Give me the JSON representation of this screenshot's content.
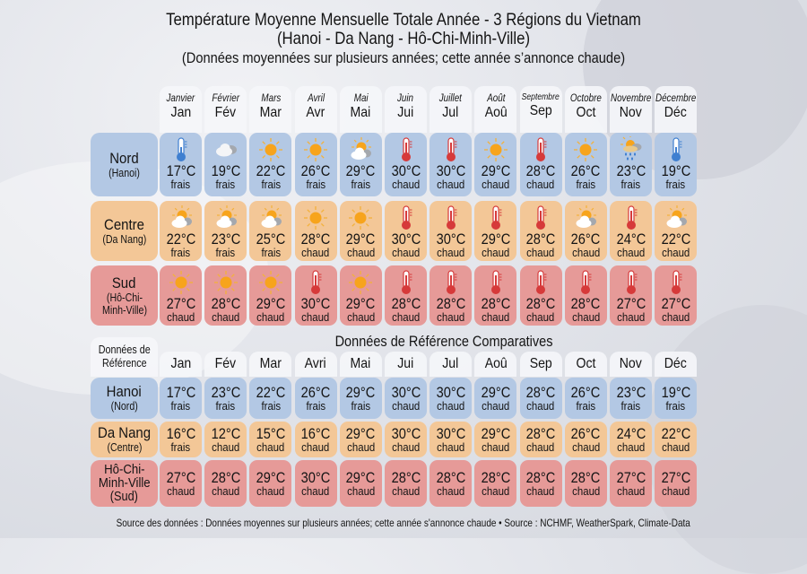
{
  "title": {
    "line1": "Température Moyenne Mensuelle Totale Année - 3 Régions du Vietnam",
    "line2": "(Hanoi - Da Nang - Hô-Chi-Minh-Ville)",
    "line3": "(Données moyennées sur plusieurs années; cette année s’annonce chaude)"
  },
  "months": [
    {
      "full": "Janvier",
      "abbr": "Jan",
      "ref_abbr": "Jan"
    },
    {
      "full": "Février",
      "abbr": "Fév",
      "ref_abbr": "Fév"
    },
    {
      "full": "Mars",
      "abbr": "Mar",
      "ref_abbr": "Mar"
    },
    {
      "full": "Avril",
      "abbr": "Avr",
      "ref_abbr": "Avri"
    },
    {
      "full": "Mai",
      "abbr": "Mai",
      "ref_abbr": "Mai"
    },
    {
      "full": "Juin",
      "abbr": "Jui",
      "ref_abbr": "Jui"
    },
    {
      "full": "Juillet",
      "abbr": "Jul",
      "ref_abbr": "Jul"
    },
    {
      "full": "Août",
      "abbr": "Aoû",
      "ref_abbr": "Aoû"
    },
    {
      "full": "Septembre",
      "abbr": "Sep",
      "ref_abbr": "Sep"
    },
    {
      "full": "Octobre",
      "abbr": "Oct",
      "ref_abbr": "Oct"
    },
    {
      "full": "Novembre",
      "abbr": "Nov",
      "ref_abbr": "Nov"
    },
    {
      "full": "Décembre",
      "abbr": "Déc",
      "ref_abbr": "Déc"
    }
  ],
  "colors": {
    "nord": "#b3c8e4",
    "centre": "#f3c797",
    "sud": "#e69a98"
  },
  "main_table": {
    "rows": [
      {
        "region": "Nord",
        "city": "(Hanoi)",
        "cls": "nord",
        "cells": [
          {
            "temp": "17°C",
            "desc": "frais",
            "icon": "thermometer-cold"
          },
          {
            "temp": "19°C",
            "desc": "frais",
            "icon": "cloud"
          },
          {
            "temp": "22°C",
            "desc": "frais",
            "icon": "sun"
          },
          {
            "temp": "26°C",
            "desc": "frais",
            "icon": "sun"
          },
          {
            "temp": "29°C",
            "desc": "frais",
            "icon": "partly-cloudy"
          },
          {
            "temp": "30°C",
            "desc": "chaud",
            "icon": "thermometer-hot"
          },
          {
            "temp": "30°C",
            "desc": "chaud",
            "icon": "thermometer-hot"
          },
          {
            "temp": "29°C",
            "desc": "chaud",
            "icon": "sun"
          },
          {
            "temp": "28°C",
            "desc": "chaud",
            "icon": "thermometer-hot"
          },
          {
            "temp": "26°C",
            "desc": "frais",
            "icon": "sun"
          },
          {
            "temp": "23°C",
            "desc": "frais",
            "icon": "sun-rain"
          },
          {
            "temp": "19°C",
            "desc": "frais",
            "icon": "thermometer-cold"
          }
        ]
      },
      {
        "region": "Centre",
        "city": "(Da Nang)",
        "cls": "centre",
        "cells": [
          {
            "temp": "22°C",
            "desc": "frais",
            "icon": "partly-cloudy"
          },
          {
            "temp": "23°C",
            "desc": "frais",
            "icon": "partly-cloudy"
          },
          {
            "temp": "25°C",
            "desc": "frais",
            "icon": "partly-cloudy"
          },
          {
            "temp": "28°C",
            "desc": "chaud",
            "icon": "sun"
          },
          {
            "temp": "29°C",
            "desc": "chaud",
            "icon": "sun"
          },
          {
            "temp": "30°C",
            "desc": "chaud",
            "icon": "thermometer-hot"
          },
          {
            "temp": "30°C",
            "desc": "chaud",
            "icon": "thermometer-hot"
          },
          {
            "temp": "29°C",
            "desc": "chaud",
            "icon": "thermometer-hot"
          },
          {
            "temp": "28°C",
            "desc": "chaud",
            "icon": "thermometer-hot"
          },
          {
            "temp": "26°C",
            "desc": "chaud",
            "icon": "partly-cloudy"
          },
          {
            "temp": "24°C",
            "desc": "chaud",
            "icon": "thermometer-hot"
          },
          {
            "temp": "22°C",
            "desc": "chaud",
            "icon": "partly-cloudy"
          }
        ]
      },
      {
        "region": "Sud",
        "city": "(Hô-Chi-Minh-Ville)",
        "cls": "sud",
        "cells": [
          {
            "temp": "27°C",
            "desc": "chaud",
            "icon": "sun"
          },
          {
            "temp": "28°C",
            "desc": "chaud",
            "icon": "sun"
          },
          {
            "temp": "29°C",
            "desc": "chaud",
            "icon": "sun"
          },
          {
            "temp": "30°C",
            "desc": "chaud",
            "icon": "thermometer-hot"
          },
          {
            "temp": "29°C",
            "desc": "chaud",
            "icon": "sun"
          },
          {
            "temp": "28°C",
            "desc": "chaud",
            "icon": "thermometer-hot"
          },
          {
            "temp": "28°C",
            "desc": "chaud",
            "icon": "thermometer-hot"
          },
          {
            "temp": "28°C",
            "desc": "chaud",
            "icon": "thermometer-hot"
          },
          {
            "temp": "28°C",
            "desc": "chaud",
            "icon": "thermometer-hot"
          },
          {
            "temp": "28°C",
            "desc": "chaud",
            "icon": "thermometer-hot"
          },
          {
            "temp": "27°C",
            "desc": "chaud",
            "icon": "thermometer-hot"
          },
          {
            "temp": "27°C",
            "desc": "chaud",
            "icon": "thermometer-hot"
          }
        ]
      }
    ]
  },
  "reference": {
    "title": "Données de Référence Comparatives",
    "corner_label_1": "Données de",
    "corner_label_2": "Référence",
    "rows": [
      {
        "city": "Hanoi",
        "region": "(Nord)",
        "cls": "nord",
        "cells": [
          {
            "temp": "17°C",
            "desc": "frais"
          },
          {
            "temp": "23°C",
            "desc": "frais"
          },
          {
            "temp": "22°C",
            "desc": "frais"
          },
          {
            "temp": "26°C",
            "desc": "frais"
          },
          {
            "temp": "29°C",
            "desc": "frais"
          },
          {
            "temp": "30°C",
            "desc": "chaud"
          },
          {
            "temp": "30°C",
            "desc": "chaud"
          },
          {
            "temp": "29°C",
            "desc": "chaud"
          },
          {
            "temp": "28°C",
            "desc": "chaud"
          },
          {
            "temp": "26°C",
            "desc": "frais"
          },
          {
            "temp": "23°C",
            "desc": "frais"
          },
          {
            "temp": "19°C",
            "desc": "frais"
          }
        ]
      },
      {
        "city": "Da Nang",
        "region": "(Centre)",
        "cls": "centre",
        "cells": [
          {
            "temp": "16°C",
            "desc": "frais"
          },
          {
            "temp": "12°C",
            "desc": "chaud"
          },
          {
            "temp": "15°C",
            "desc": "chaud"
          },
          {
            "temp": "16°C",
            "desc": "chaud"
          },
          {
            "temp": "29°C",
            "desc": "chaud"
          },
          {
            "temp": "30°C",
            "desc": "chaud"
          },
          {
            "temp": "30°C",
            "desc": "chaud"
          },
          {
            "temp": "29°C",
            "desc": "chaud"
          },
          {
            "temp": "28°C",
            "desc": "chaud"
          },
          {
            "temp": "26°C",
            "desc": "chaud"
          },
          {
            "temp": "24°C",
            "desc": "chaud"
          },
          {
            "temp": "22°C",
            "desc": "chaud"
          }
        ]
      },
      {
        "city": "Hô-Chi-Minh-Ville",
        "city_l1": "Hô-Chi-",
        "city_l2": "Minh-Ville",
        "region": "(Sud)",
        "cls": "sud",
        "cells": [
          {
            "temp": "27°C",
            "desc": "chaud"
          },
          {
            "temp": "28°C",
            "desc": "chaud"
          },
          {
            "temp": "29°C",
            "desc": "chaud"
          },
          {
            "temp": "30°C",
            "desc": "chaud"
          },
          {
            "temp": "29°C",
            "desc": "chaud"
          },
          {
            "temp": "28°C",
            "desc": "chaud"
          },
          {
            "temp": "28°C",
            "desc": "chaud"
          },
          {
            "temp": "28°C",
            "desc": "chaud"
          },
          {
            "temp": "28°C",
            "desc": "chaud"
          },
          {
            "temp": "28°C",
            "desc": "chaud"
          },
          {
            "temp": "27°C",
            "desc": "chaud"
          },
          {
            "temp": "27°C",
            "desc": "chaud"
          }
        ]
      }
    ]
  },
  "footer": "Source des données : Données moyennes sur plusieurs années; cette année s'annonce chaude • Source : NCHMF, WeatherSpark, Climate-Data",
  "chart_data": {
    "type": "table",
    "title": "Température Moyenne Mensuelle Totale Année - 3 Régions du Vietnam",
    "subtitle": "(Hanoi - Da Nang - Hô-Chi-Minh-Ville) (Données moyennées sur plusieurs années; cette année s’annonce chaude)",
    "categories": [
      "Jan",
      "Fév",
      "Mar",
      "Avr",
      "Mai",
      "Jui",
      "Jul",
      "Aoû",
      "Sep",
      "Oct",
      "Nov",
      "Déc"
    ],
    "unit": "°C",
    "series": [
      {
        "name": "Nord (Hanoi)",
        "values": [
          17,
          19,
          22,
          26,
          29,
          30,
          30,
          29,
          28,
          26,
          23,
          19
        ],
        "labels": [
          "frais",
          "frais",
          "frais",
          "frais",
          "frais",
          "chaud",
          "chaud",
          "chaud",
          "chaud",
          "frais",
          "frais",
          "frais"
        ]
      },
      {
        "name": "Centre (Da Nang)",
        "values": [
          22,
          23,
          25,
          28,
          29,
          30,
          30,
          29,
          28,
          26,
          24,
          22
        ],
        "labels": [
          "frais",
          "frais",
          "frais",
          "chaud",
          "chaud",
          "chaud",
          "chaud",
          "chaud",
          "chaud",
          "chaud",
          "chaud",
          "chaud"
        ]
      },
      {
        "name": "Sud (Hô-Chi-Minh-Ville)",
        "values": [
          27,
          28,
          29,
          30,
          29,
          28,
          28,
          28,
          28,
          28,
          27,
          27
        ],
        "labels": [
          "chaud",
          "chaud",
          "chaud",
          "chaud",
          "chaud",
          "chaud",
          "chaud",
          "chaud",
          "chaud",
          "chaud",
          "chaud",
          "chaud"
        ]
      }
    ],
    "reference_series": [
      {
        "name": "Hanoi (Nord)",
        "values": [
          17,
          23,
          22,
          26,
          29,
          30,
          30,
          29,
          28,
          26,
          23,
          19
        ]
      },
      {
        "name": "Da Nang (Centre)",
        "values": [
          16,
          12,
          15,
          16,
          29,
          30,
          30,
          29,
          28,
          26,
          24,
          22
        ]
      },
      {
        "name": "Hô-Chi-Minh-Ville (Sud)",
        "values": [
          27,
          28,
          29,
          30,
          29,
          28,
          28,
          28,
          28,
          28,
          27,
          27
        ]
      }
    ]
  }
}
